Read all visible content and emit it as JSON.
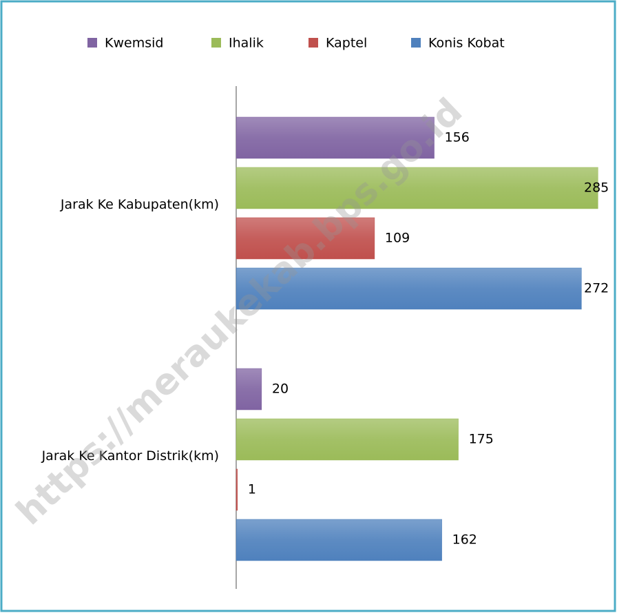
{
  "chart_data": {
    "type": "bar",
    "orientation": "horizontal",
    "categories": [
      "Jarak Ke Kabupaten(km)",
      "Jarak Ke Kantor Distrik(km)"
    ],
    "series": [
      {
        "name": "Kwemsid",
        "color": "#8064a2",
        "values": [
          156,
          20
        ]
      },
      {
        "name": "Ihalik",
        "color": "#9bbb59",
        "values": [
          285,
          175
        ]
      },
      {
        "name": "Kaptel",
        "color": "#c0504d",
        "values": [
          109,
          1
        ]
      },
      {
        "name": "Konis Kobat",
        "color": "#4f81bd",
        "values": [
          272,
          162
        ]
      }
    ],
    "xlim": [
      0,
      300
    ],
    "legend": "top",
    "watermark": "https://meraukekab.bps.go.id"
  }
}
